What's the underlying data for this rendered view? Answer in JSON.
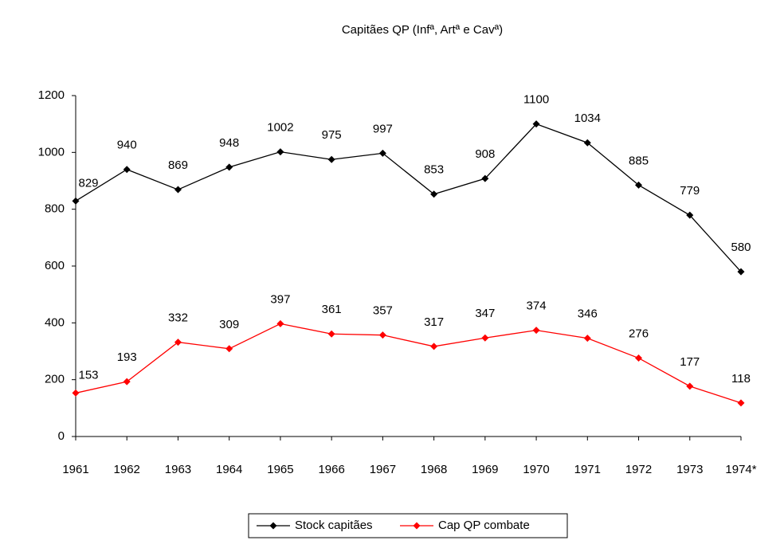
{
  "chart_data": {
    "type": "line",
    "title": "Capitães QP (Infª, Artª e Cavª)",
    "categories": [
      "1961",
      "1962",
      "1963",
      "1964",
      "1965",
      "1966",
      "1967",
      "1968",
      "1969",
      "1970",
      "1971",
      "1972",
      "1973",
      "1974*"
    ],
    "series": [
      {
        "name": "Stock capitães",
        "color": "#000000",
        "values": [
          829,
          940,
          869,
          948,
          1002,
          975,
          997,
          853,
          908,
          1100,
          1034,
          885,
          779,
          580
        ]
      },
      {
        "name": "Cap QP combate",
        "color": "#ff0000",
        "values": [
          153,
          193,
          332,
          309,
          397,
          361,
          357,
          317,
          347,
          374,
          346,
          276,
          177,
          118
        ]
      }
    ],
    "ylim": [
      0,
      1200
    ],
    "yticks": [
      0,
      200,
      400,
      600,
      800,
      1000,
      1200
    ],
    "grid": false,
    "legend": "bottom"
  }
}
